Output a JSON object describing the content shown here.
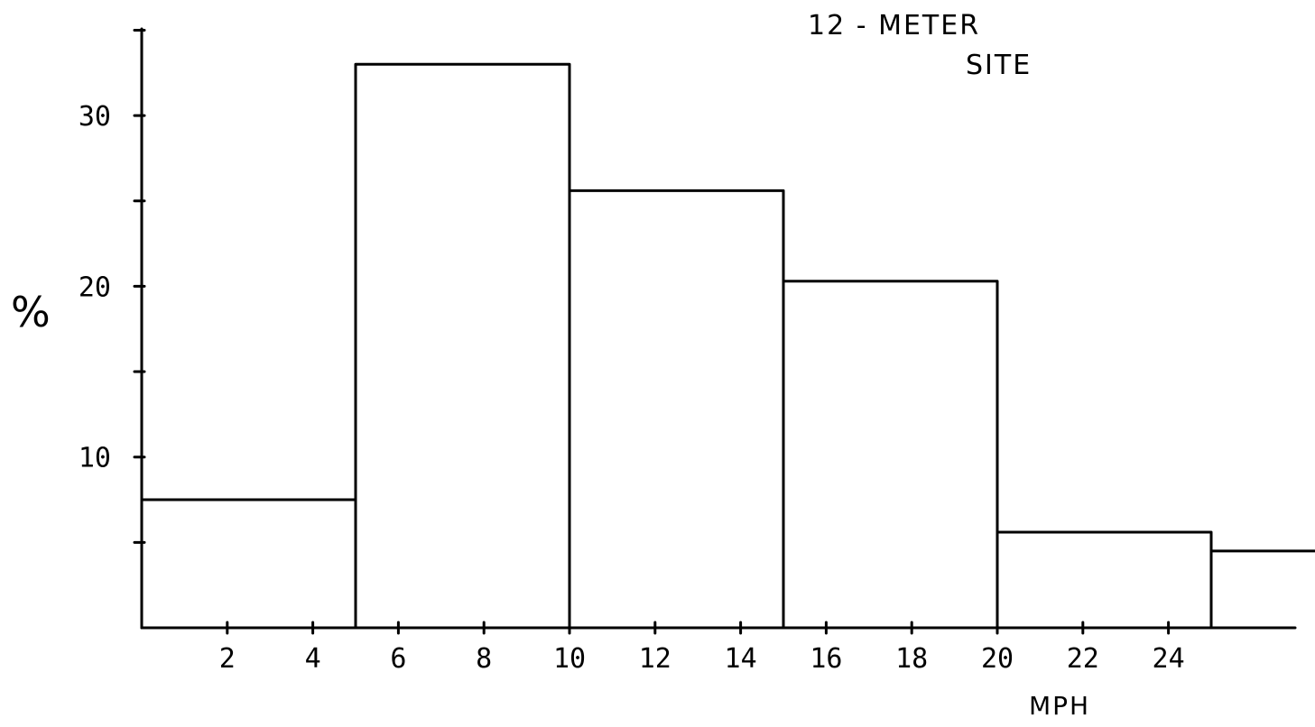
{
  "chart_data": {
    "type": "bar",
    "title_lines": [
      "12 - METER",
      "SITE"
    ],
    "xlabel": "MPH",
    "ylabel": "%",
    "bins": [
      {
        "x0": 0,
        "x1": 5,
        "value": 7.5
      },
      {
        "x0": 5,
        "x1": 10,
        "value": 33
      },
      {
        "x0": 10,
        "x1": 15,
        "value": 25.6
      },
      {
        "x0": 15,
        "x1": 20,
        "value": 20.3
      },
      {
        "x0": 20,
        "x1": 25,
        "value": 5.6
      },
      {
        "x0": 25,
        "x1": 27.5,
        "value": 4.5
      }
    ],
    "xlim": [
      0,
      27.5
    ],
    "ylim": [
      0,
      35
    ],
    "x_ticks": [
      2,
      4,
      6,
      8,
      10,
      12,
      14,
      16,
      18,
      20,
      22,
      24
    ],
    "x_tick_labels": [
      "2",
      "4",
      "6",
      "8",
      "10",
      "12",
      "14",
      "16",
      "18",
      "20",
      "22",
      "24"
    ],
    "y_ticks": [
      5,
      10,
      15,
      20,
      25,
      30,
      35
    ],
    "y_labeled_ticks": [
      10,
      20,
      30
    ],
    "y_tick_labels": [
      "10",
      "20",
      "30"
    ],
    "grid": false,
    "legend": "none"
  }
}
